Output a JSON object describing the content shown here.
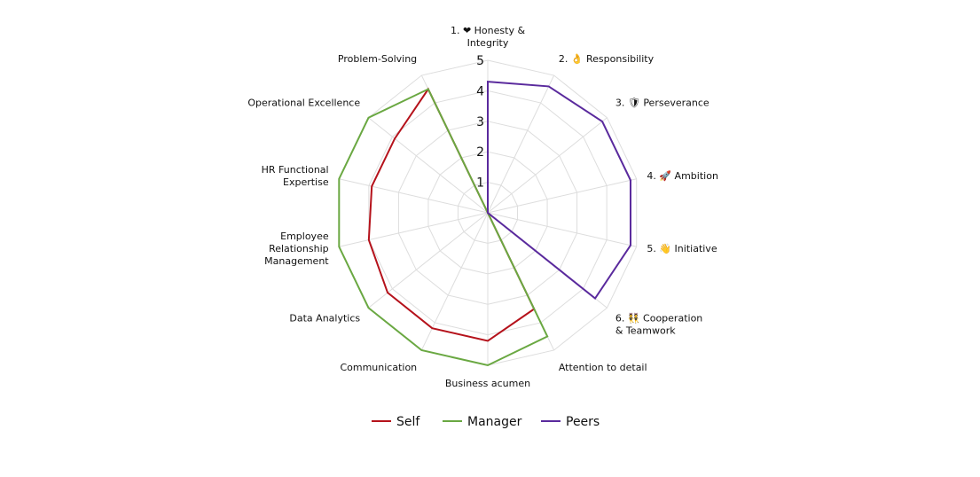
{
  "chart_data": {
    "type": "radar",
    "axes": [
      [
        "1. ❤ Honesty &",
        "Integrity"
      ],
      [
        "2. 👌 Responsibility"
      ],
      [
        "3. 🛡 Perseverance"
      ],
      [
        "4. 🚀 Ambition"
      ],
      [
        "5. 👋 Initiative"
      ],
      [
        "6. 👯 Cooperation",
        "& Teamwork"
      ],
      [
        "Attention to detail"
      ],
      [
        "Business acumen"
      ],
      [
        "Communication"
      ],
      [
        "Data Analytics"
      ],
      [
        "Employee",
        "Relationship",
        "Management"
      ],
      [
        "HR Functional",
        "Expertise"
      ],
      [
        "Operational Excellence"
      ],
      [
        "Problem-Solving"
      ]
    ],
    "r_range": [
      0,
      5
    ],
    "ticks": [
      "1",
      "2",
      "3",
      "4",
      "5"
    ],
    "grid": true,
    "legend_position": "bottom",
    "series": [
      {
        "name": "Self",
        "color": "#b5121b",
        "values": [
          0,
          0,
          0,
          0,
          0,
          0,
          3.5,
          4.2,
          4.2,
          4.2,
          4.0,
          3.9,
          3.9,
          4.5
        ]
      },
      {
        "name": "Manager",
        "color": "#6aa842",
        "values": [
          0,
          0,
          0,
          0,
          0,
          0,
          4.5,
          5.0,
          5.0,
          5.0,
          5.0,
          5.0,
          5.0,
          4.5
        ]
      },
      {
        "name": "Peers",
        "color": "#5a2a9d",
        "values": [
          4.3,
          4.6,
          4.8,
          4.8,
          4.8,
          4.5,
          0,
          0,
          0,
          0,
          0,
          0,
          0,
          0
        ]
      }
    ]
  }
}
